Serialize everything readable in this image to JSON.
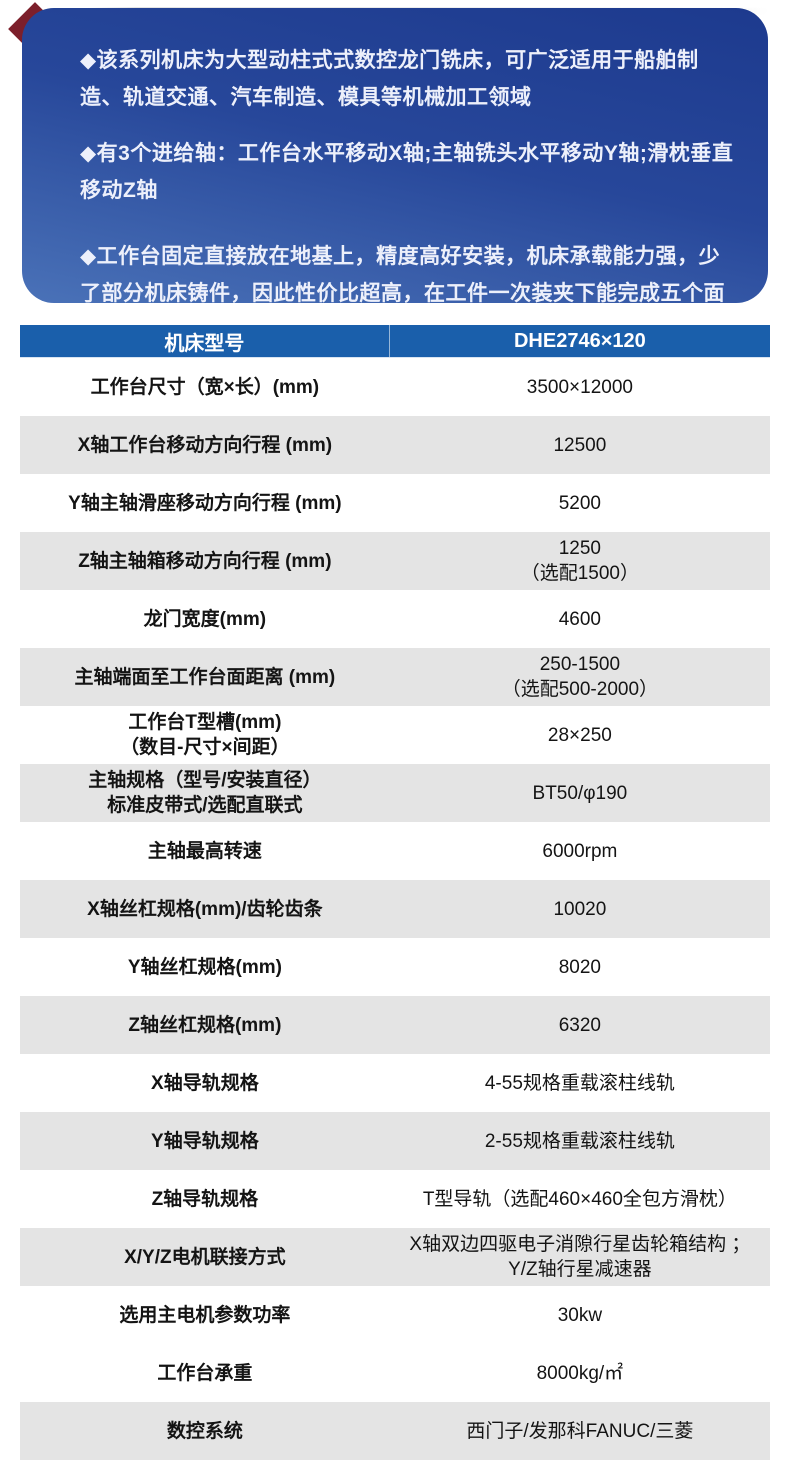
{
  "hero": {
    "bullets": [
      "◆该系列机床为大型动柱式式数控龙门铣床，可广泛适用于船舶制造、轨道交通、汽车制造、模具等机械加工领域",
      "◆有3个进给轴：工作台水平移动X轴;主轴铣头水平移动Y轴;滑枕垂直移动Z轴",
      "◆工作台固定直接放在地基上，精度高好安装，机床承载能力强，少了部分机床铸件，因此性价比超高，在工件一次装夹下能完成五个面的铣、镗、钻、铰孔、攻丝等加工工序，数控系统控制可实现三轴联动，实现轮廓铣削"
    ],
    "colors": {
      "gradient_top": "#1d3a8e",
      "gradient_bottom": "#4a72b8",
      "corner_accent": "#7c1f2b",
      "text": "#edf0fb"
    }
  },
  "table": {
    "header": {
      "col1": "机床型号",
      "col2": "DHE2746×120",
      "background": "#1a5fab",
      "text_color": "#ffffff"
    },
    "row_colors": {
      "shaded": "#e4e4e4",
      "plain": "#ffffff",
      "text": "#141414"
    },
    "rows": [
      {
        "label": "工作台尺寸（宽×长）(mm)",
        "value": "3500×12000",
        "shaded": false
      },
      {
        "label": "X轴工作台移动方向行程 (mm)",
        "value": "12500",
        "shaded": true
      },
      {
        "label": "Y轴主轴滑座移动方向行程 (mm)",
        "value": "5200",
        "shaded": false
      },
      {
        "label": "Z轴主轴箱移动方向行程 (mm)",
        "value": "1250",
        "value2": "（选配1500）",
        "shaded": true
      },
      {
        "label": "龙门宽度(mm)",
        "value": "4600",
        "shaded": false
      },
      {
        "label": "主轴端面至工作台面距离 (mm)",
        "value": "250-1500",
        "value2": "（选配500-2000）",
        "shaded": true
      },
      {
        "label": "工作台T型槽(mm)",
        "label2": "（数目-尺寸×间距）",
        "value": "28×250",
        "shaded": false
      },
      {
        "label": "主轴规格（型号/安装直径）",
        "label2": "标准皮带式/选配直联式",
        "value": "BT50/φ190",
        "shaded": true
      },
      {
        "label": "主轴最高转速",
        "value": "6000rpm",
        "shaded": false
      },
      {
        "label": "X轴丝杠规格(mm)/齿轮齿条",
        "value": "10020",
        "shaded": true
      },
      {
        "label": "Y轴丝杠规格(mm)",
        "value": "8020",
        "shaded": false
      },
      {
        "label": "Z轴丝杠规格(mm)",
        "value": "6320",
        "shaded": true
      },
      {
        "label": "X轴导轨规格",
        "value": "4-55规格重载滚柱线轨",
        "shaded": false
      },
      {
        "label": "Y轴导轨规格",
        "value": "2-55规格重载滚柱线轨",
        "shaded": true
      },
      {
        "label": "Z轴导轨规格",
        "value": "T型导轨（选配460×460全包方滑枕）",
        "shaded": false
      },
      {
        "label": "X/Y/Z电机联接方式",
        "value": "X轴双边四驱电子消隙行星齿轮箱结构 ；Y/Z轴行星减速器",
        "shaded": true
      },
      {
        "label": "选用主电机参数功率",
        "value": "30kw",
        "shaded": false
      },
      {
        "label": "工作台承重",
        "value": "8000kg/㎡",
        "shaded": false
      },
      {
        "label": "数控系统",
        "value": "西门子/发那科FANUC/三菱",
        "shaded": true
      }
    ]
  }
}
